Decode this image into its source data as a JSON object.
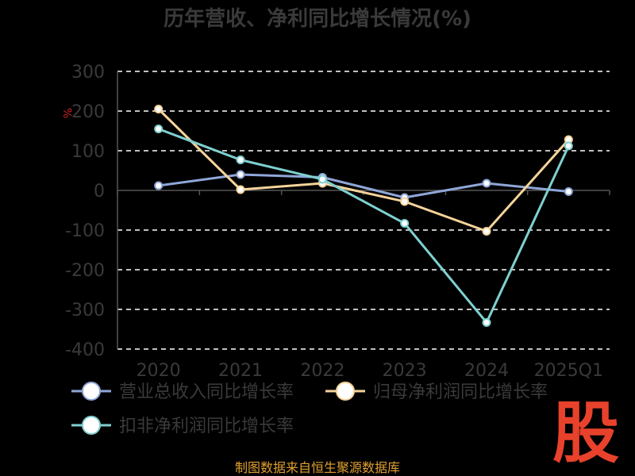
{
  "chart_data": {
    "type": "line",
    "title": "历年营收、净利同比增长情况(%)",
    "ylabel": "%",
    "categories": [
      "2020",
      "2021",
      "2022",
      "2023",
      "2024",
      "2025Q1"
    ],
    "ylim": [
      -400,
      300
    ],
    "yticks": [
      300,
      200,
      100,
      0,
      -100,
      -200,
      -300,
      -400
    ],
    "grid": true,
    "legend_position": "bottom",
    "series": [
      {
        "name": "营业总收入同比增长率",
        "color": "#8fa6d8",
        "values": [
          12,
          40,
          33,
          -18,
          18,
          -3
        ]
      },
      {
        "name": "归母净利润同比增长率",
        "color": "#f5d39a",
        "values": [
          205,
          2,
          18,
          -28,
          -103,
          128
        ]
      },
      {
        "name": "扣非净利润同比增长率",
        "color": "#7fd0d0",
        "values": [
          155,
          77,
          28,
          -83,
          -333,
          112
        ]
      }
    ]
  },
  "source": "制图数据来自恒生聚源数据库",
  "logo_text": "股",
  "colors": {
    "logo": "#e8412c",
    "source": "#e0a030"
  }
}
